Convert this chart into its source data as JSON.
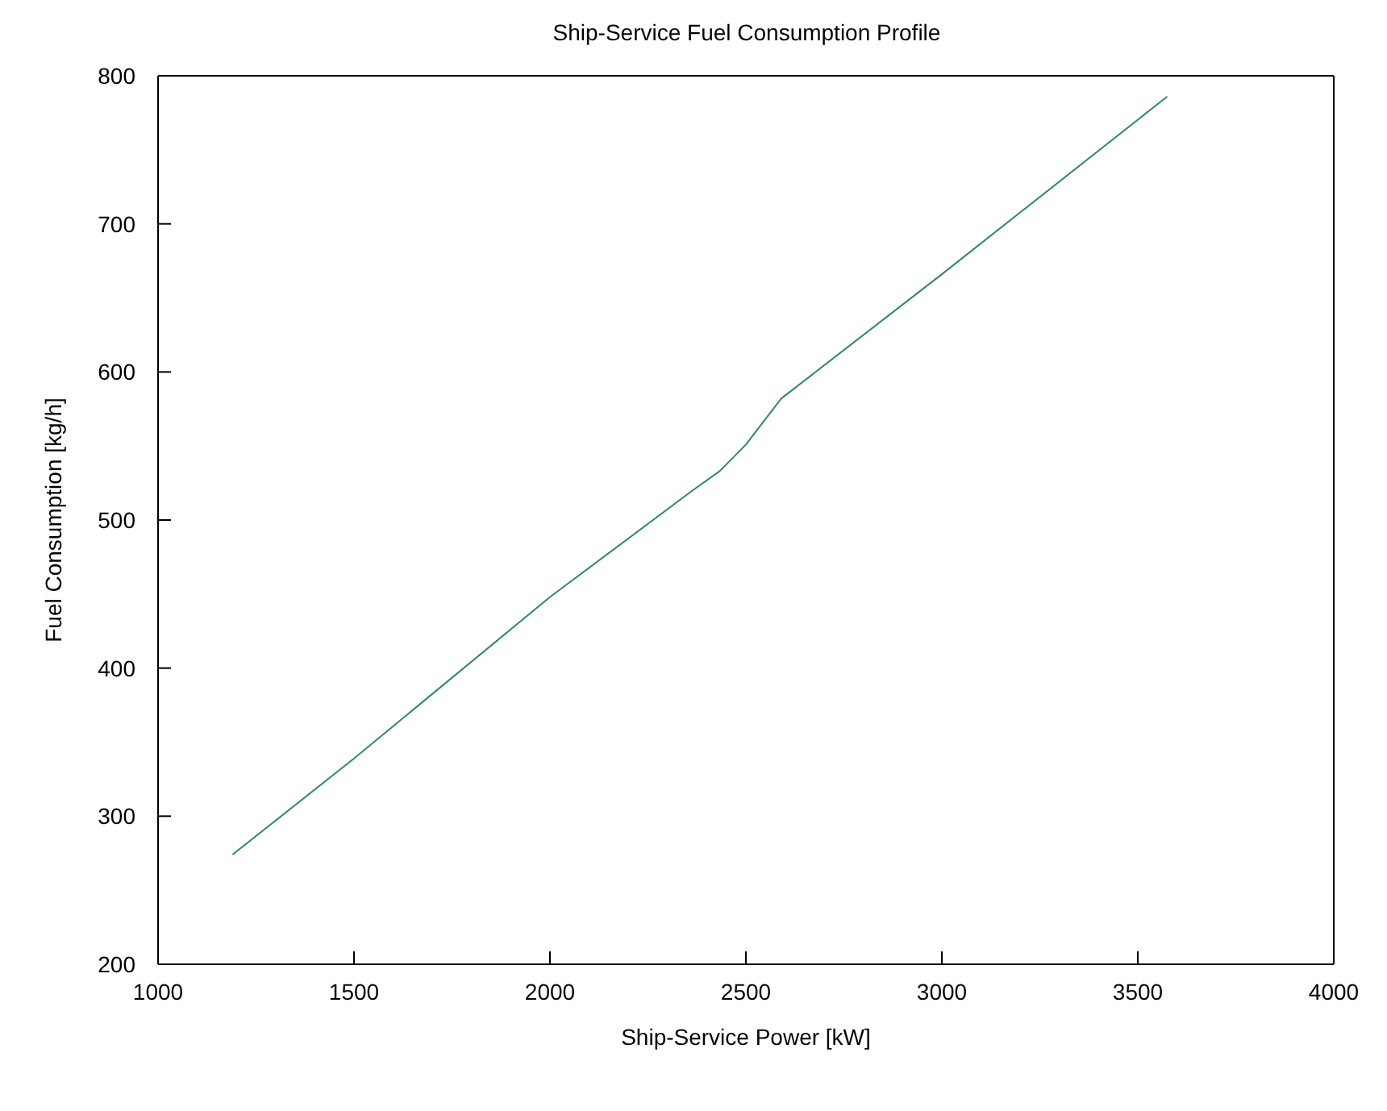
{
  "chart_data": {
    "type": "line",
    "title": "Ship-Service Fuel Consumption Profile",
    "xlabel": "Ship-Service Power [kW]",
    "ylabel": "Fuel Consumption [kg/h]",
    "x": [
      1190,
      1500,
      2000,
      2364,
      2433,
      2500,
      2590,
      3000,
      3575
    ],
    "series": [
      {
        "color": "#2e8b57",
        "values": [
          274,
          339,
          448,
          520,
          533,
          551,
          582,
          666,
          786
        ]
      }
    ],
    "xlim": [
      1000,
      4000
    ],
    "xticks": [
      1000,
      1500,
      2000,
      2500,
      3000,
      3500,
      4000
    ],
    "ylim": [
      200,
      800
    ],
    "yticks": [
      200,
      300,
      400,
      500,
      600,
      700,
      800
    ],
    "grid": false,
    "legend": false,
    "marker": "none",
    "line_style": "solid"
  }
}
